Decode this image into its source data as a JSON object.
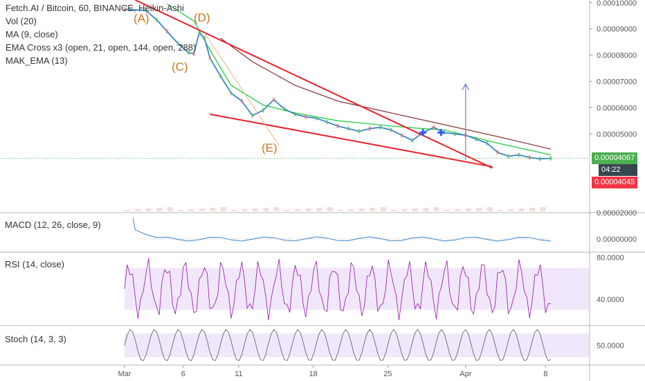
{
  "chart_data": {
    "type": "line",
    "title": "Fetch.AI / Bitcoin, 60, BINANCE, Heikin-Ashi",
    "indicators": [
      "Vol (20)",
      "MA (9, close)",
      "EMA Cross x3 (open, 21, open, 144, open, 288)",
      "MAK_EMA (13)"
    ],
    "x_ticks": [
      "Mar",
      "6",
      "11",
      "18",
      "25",
      "Apr",
      "8"
    ],
    "price_axis": [
      "0.00010000",
      "0.00009000",
      "0.00008000",
      "0.00007000",
      "0.00006000",
      "0.00005000",
      "0.00002000"
    ],
    "price_ylim": [
      2e-05,
      0.000101
    ],
    "last_price": "0.00004067",
    "countdown": "04:22",
    "target_price": "0.00004045",
    "annotations": [
      "(A)",
      "(D)",
      "(C)",
      "(E)"
    ],
    "price_series": {
      "name": "FET/BTC",
      "x": [
        0,
        2,
        3,
        4,
        5,
        6,
        6.5,
        7,
        7.5,
        8,
        9,
        10,
        11,
        12,
        13,
        14,
        15,
        16,
        17,
        18,
        19,
        20,
        21,
        22,
        23,
        24,
        25,
        26,
        27,
        28,
        29,
        30,
        31,
        32,
        33,
        34,
        35,
        36,
        37,
        38,
        39,
        40
      ],
      "y": [
        9.75e-05,
        9.7e-05,
        9.35e-05,
        8.9e-05,
        8.45e-05,
        8.1e-05,
        8.05e-05,
        8.85e-05,
        8.65e-05,
        7.9e-05,
        7.2e-05,
        6.55e-05,
        6.25e-05,
        5.7e-05,
        5.9e-05,
        6.3e-05,
        5.95e-05,
        5.75e-05,
        5.65e-05,
        5.6e-05,
        5.45e-05,
        5.3e-05,
        5.2e-05,
        5.1e-05,
        5.2e-05,
        5.25e-05,
        5.15e-05,
        4.95e-05,
        4.75e-05,
        5.05e-05,
        5.25e-05,
        5.05e-05,
        5e-05,
        4.95e-05,
        4.8e-05,
        4.65e-05,
        4.3e-05,
        4.15e-05,
        4.2e-05,
        4.1e-05,
        4.05e-05,
        4.07e-05
      ]
    },
    "ema_long": {
      "x": [
        9,
        12,
        16,
        20,
        25,
        30,
        35,
        40
      ],
      "y": [
        8.65e-05,
        7.75e-05,
        6.85e-05,
        6.25e-05,
        5.8e-05,
        5.35e-05,
        4.9e-05,
        4.42e-05
      ]
    },
    "ema_mid": {
      "x": [
        4,
        6.5,
        8,
        10,
        13,
        16,
        20,
        25,
        28,
        30,
        35,
        40
      ],
      "y": [
        9.95e-05,
        9.3e-05,
        8.2e-05,
        6.85e-05,
        6.1e-05,
        5.8e-05,
        5.5e-05,
        5.3e-05,
        5.2e-05,
        5.15e-05,
        4.65e-05,
        4.2e-05
      ]
    },
    "trend_upper": {
      "x": [
        1,
        34.5
      ],
      "y": [
        0.000101,
        3.7e-05
      ]
    },
    "trend_lower": {
      "x": [
        8,
        34.5
      ],
      "y": [
        5.75e-05,
        3.75e-05
      ]
    },
    "projection_arrow": {
      "x": [
        32,
        32
      ],
      "y": [
        4e-05,
        6.9e-05
      ]
    },
    "macd": {
      "title": "MACD (12, 26, close, 9)",
      "axis": [
        "0.00000000"
      ]
    },
    "rsi": {
      "title": "RSI (14, close)",
      "axis": [
        "80.0000",
        "40.0000"
      ],
      "band": [
        30,
        70
      ]
    },
    "stoch": {
      "title": "Stoch (14, 3, 3)",
      "axis": [
        "50.0000"
      ],
      "band": [
        20,
        80
      ]
    }
  },
  "colors": {
    "price_line": "#3a86c8",
    "ema_long": "#8b3a3a",
    "ema_mid": "#22cc44",
    "trend": "#e8202a",
    "arrow": "#6d7fcf",
    "tag_green": "#4caf50",
    "tag_dark": "#37474f",
    "tag_red": "#f23645",
    "wave_label": "#c8781e",
    "band": "#e8d7f7"
  }
}
